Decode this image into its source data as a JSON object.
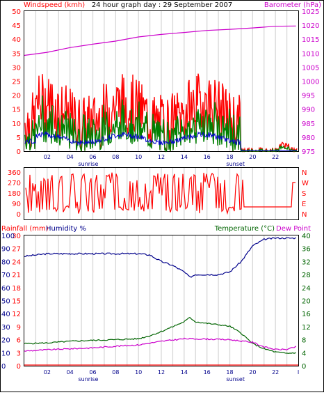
{
  "chart_data": [
    {
      "type": "line",
      "title": "24 hour graph day : 29 September 2007",
      "ylabel": "Windspeed (kmh)",
      "ylabel_right": "Barometer (hPa)",
      "ylim": [
        0,
        50
      ],
      "ylim_right": [
        975,
        1025
      ],
      "yticks": [
        "0",
        "5",
        "10",
        "15",
        "20",
        "25",
        "30",
        "35",
        "40",
        "45",
        "50"
      ],
      "yticks_right": [
        "975",
        "980",
        "985",
        "990",
        "995",
        "1000",
        "1005",
        "1010",
        "1015",
        "1020",
        "1025"
      ],
      "xticks": [
        "02",
        "04",
        "06",
        "08",
        "10",
        "12",
        "14",
        "16",
        "18",
        "20",
        "22",
        "I"
      ],
      "x_markers": [
        "sunrise",
        "sunset"
      ],
      "grid": true,
      "colors": {
        "gust": "#ff0000",
        "speed": "#008000",
        "average": "#0000cc",
        "barometer": "#cc00cc"
      },
      "series": [
        {
          "name": "Barometer",
          "axis": "right",
          "x": [
            0,
            2,
            4,
            6,
            8,
            10,
            12,
            14,
            16,
            18,
            20,
            22,
            23.8
          ],
          "values": [
            1009.2,
            1010.3,
            1012.0,
            1013.2,
            1014.3,
            1015.8,
            1016.7,
            1017.4,
            1018.1,
            1018.5,
            1019.0,
            1019.6,
            1019.7
          ]
        }
      ]
    },
    {
      "type": "line",
      "yticks": [
        "0",
        "90",
        "180",
        "270",
        "360"
      ],
      "yticks_right": [
        "N",
        "E",
        "S",
        "W",
        "N"
      ],
      "ylim": [
        0,
        360
      ],
      "colors": {
        "direction": "#ff0000"
      },
      "series": [
        {
          "name": "Wind Direction",
          "x": [
            0,
            1,
            2,
            3,
            4,
            5,
            6,
            7,
            8,
            9,
            10,
            11,
            12,
            13,
            14,
            15,
            16,
            17,
            18,
            19,
            20,
            21,
            22,
            23,
            23.8
          ],
          "values": [
            270,
            200,
            300,
            100,
            250,
            60,
            180,
            40,
            320,
            90,
            250,
            30,
            280,
            80,
            300,
            120,
            260,
            40,
            120,
            60,
            60,
            60,
            60,
            60,
            270
          ]
        }
      ]
    },
    {
      "type": "line",
      "ylabel": "Rainfall (mm)",
      "ylabel_2": "Humidity %",
      "ylabel_right": "Temperature (°C)",
      "ylabel_right_2": "Dew Point",
      "ylim": [
        0,
        30
      ],
      "ylim_right": [
        0,
        40
      ],
      "yticks": [
        "0",
        "3",
        "6",
        "9",
        "12",
        "15",
        "18",
        "21",
        "24",
        "27",
        "30"
      ],
      "yticks_humidity": [
        "0",
        "10",
        "20",
        "30",
        "40",
        "50",
        "60",
        "70",
        "80",
        "90",
        "100"
      ],
      "yticks_right": [
        "0",
        "4",
        "8",
        "12",
        "16",
        "20",
        "24",
        "28",
        "32",
        "36",
        "40"
      ],
      "xticks": [
        "02",
        "04",
        "06",
        "08",
        "10",
        "12",
        "14",
        "16",
        "18",
        "20",
        "22",
        "I"
      ],
      "x_markers": [
        "sunrise",
        "sunset"
      ],
      "colors": {
        "humidity": "#00008b",
        "temperature": "#006400",
        "dewpoint": "#cc00cc",
        "rainfall": "#ff0000"
      },
      "series": [
        {
          "name": "Humidity",
          "x": [
            0,
            1,
            2,
            4,
            6,
            8,
            10,
            11,
            12,
            13,
            14,
            14.5,
            15,
            16,
            17,
            18,
            19,
            20,
            21,
            22,
            23,
            23.8
          ],
          "values": [
            84,
            85,
            86,
            86,
            86,
            86,
            86,
            85,
            80,
            77,
            72,
            68,
            70,
            70,
            70,
            72,
            80,
            92,
            97,
            98,
            98,
            98
          ]
        },
        {
          "name": "Temperature",
          "x": [
            0,
            2,
            4,
            6,
            8,
            10,
            11,
            12,
            13,
            14,
            14.5,
            15,
            16,
            17,
            18,
            19,
            20,
            21,
            22,
            23,
            23.8
          ],
          "values": [
            6.8,
            7.0,
            7.5,
            7.8,
            8.0,
            8.3,
            9.2,
            10.5,
            12,
            13.5,
            14.8,
            13.5,
            13,
            12.6,
            12.1,
            10,
            6.8,
            5.2,
            4.2,
            3.8,
            4.0
          ]
        },
        {
          "name": "Dew Point",
          "x": [
            0,
            2,
            4,
            6,
            8,
            10,
            12,
            14,
            16,
            18,
            20,
            21,
            22,
            23,
            23.8
          ],
          "values": [
            4.5,
            4.9,
            5.2,
            5.5,
            6.0,
            6.4,
            7.5,
            8.3,
            8.2,
            8.0,
            7.2,
            5.8,
            5.0,
            5.0,
            5.8
          ]
        },
        {
          "name": "Rainfall",
          "x": [
            0,
            23.8
          ],
          "values": [
            0,
            0
          ]
        }
      ]
    }
  ]
}
